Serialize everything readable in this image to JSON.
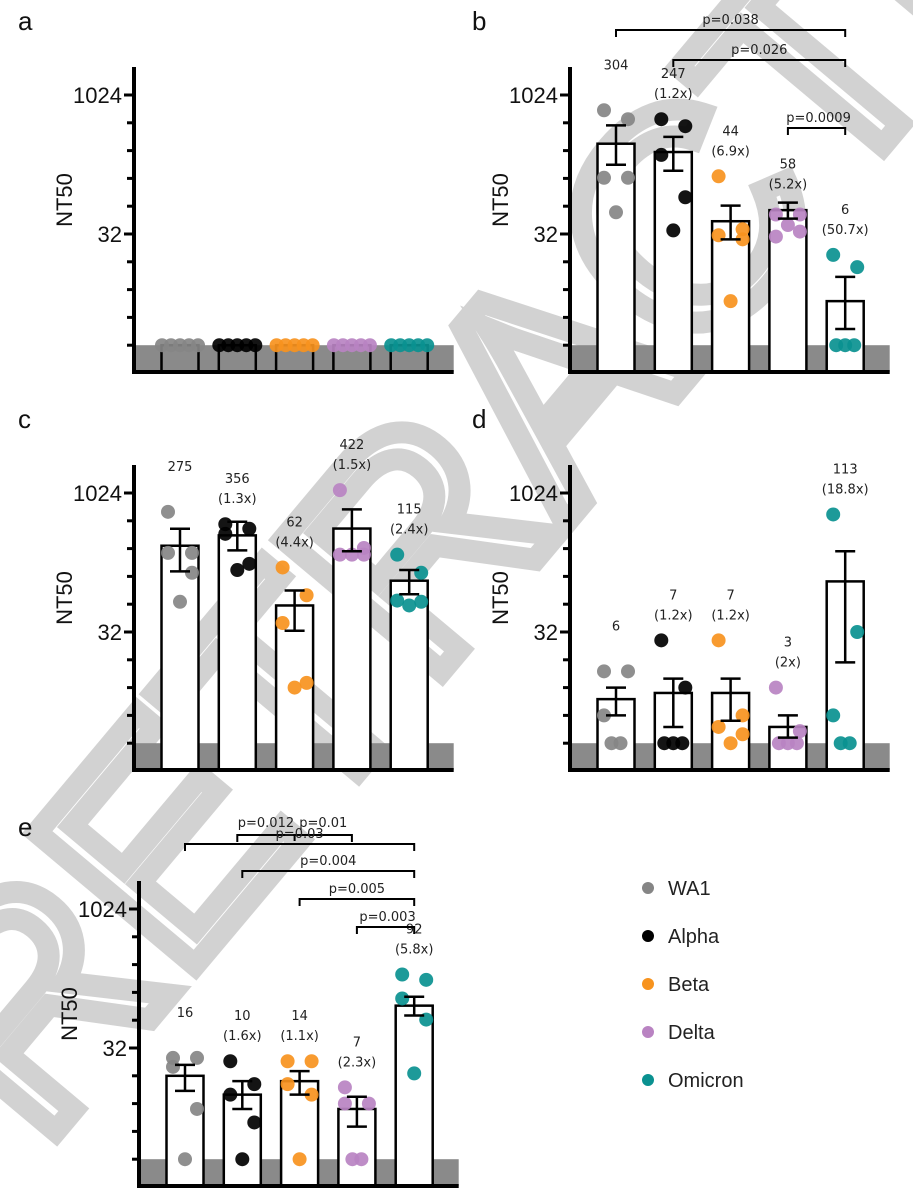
{
  "colors": {
    "WA1": "#858585",
    "Alpha": "#000000",
    "Beta": "#f7931e",
    "Delta": "#b983c2",
    "Omicron": "#0a9190",
    "lod_band": "#8a8a8a"
  },
  "legend": [
    {
      "name": "WA1",
      "color": "#858585"
    },
    {
      "name": "Alpha",
      "color": "#000000"
    },
    {
      "name": "Beta",
      "color": "#f7931e"
    },
    {
      "name": "Delta",
      "color": "#b983c2"
    },
    {
      "name": "Omicron",
      "color": "#0a9190"
    }
  ],
  "watermark": "RETRACTED ARTICLE",
  "chart_data": [
    {
      "panel": "a",
      "type": "bar",
      "ylabel": "NT50",
      "yscale": "log2",
      "yticks": [
        "1024",
        "32"
      ],
      "ylim": [
        1,
        4096
      ],
      "lod": 2,
      "categories": [
        "WA1",
        "Alpha",
        "Beta",
        "Delta",
        "Omicron"
      ],
      "means": [
        2,
        2,
        2,
        2,
        2
      ],
      "sem_low": [
        2,
        2,
        2,
        2,
        2
      ],
      "sem_high": [
        2,
        2,
        2,
        2,
        2
      ],
      "points": [
        [
          2,
          2,
          2,
          2,
          2
        ],
        [
          2,
          2,
          2,
          2,
          2
        ],
        [
          2,
          2,
          2,
          2,
          2
        ],
        [
          2,
          2,
          2,
          2,
          2
        ],
        [
          2,
          2,
          2,
          2,
          2
        ]
      ],
      "labels": [
        [
          "",
          ""
        ],
        [
          "",
          ""
        ],
        [
          "",
          ""
        ],
        [
          "",
          ""
        ],
        [
          "",
          ""
        ]
      ],
      "pvalues": []
    },
    {
      "panel": "b",
      "type": "bar",
      "ylabel": "NT50",
      "yscale": "log2",
      "yticks": [
        "1024",
        "32"
      ],
      "ylim": [
        1,
        4096
      ],
      "lod": 2,
      "categories": [
        "WA1",
        "Alpha",
        "Beta",
        "Delta",
        "Omicron"
      ],
      "means": [
        304,
        247,
        44,
        58,
        6
      ],
      "sem_low": [
        180,
        155,
        28,
        47,
        3
      ],
      "sem_high": [
        480,
        360,
        65,
        70,
        11
      ],
      "points": [
        [
          700,
          560,
          130,
          130,
          55
        ],
        [
          560,
          470,
          230,
          80,
          35
        ],
        [
          135,
          36,
          31,
          28,
          6
        ],
        [
          52,
          52,
          30,
          34,
          40
        ],
        [
          19,
          14,
          2,
          2,
          2
        ]
      ],
      "labels": [
        [
          "304",
          ""
        ],
        [
          "247",
          "(1.2x)"
        ],
        [
          "44",
          "(6.9x)"
        ],
        [
          "58",
          "(5.2x)"
        ],
        [
          "6",
          "(50.7x)"
        ]
      ],
      "pvalues": [
        {
          "from": 0,
          "to": 4,
          "label": "p=0.038"
        },
        {
          "from": 1,
          "to": 4,
          "label": "p=0.026"
        },
        {
          "from": 3,
          "to": 4,
          "label": "p=0.0009"
        }
      ]
    },
    {
      "panel": "c",
      "type": "bar",
      "ylabel": "NT50",
      "yscale": "log2",
      "yticks": [
        "1024",
        "32"
      ],
      "ylim": [
        1,
        4096
      ],
      "lod": 2,
      "categories": [
        "WA1",
        "Alpha",
        "Beta",
        "Delta",
        "Omicron"
      ],
      "means": [
        275,
        356,
        62,
        422,
        115
      ],
      "sem_low": [
        145,
        245,
        33,
        240,
        82
      ],
      "sem_high": [
        420,
        500,
        90,
        680,
        150
      ],
      "points": [
        [
          640,
          230,
          230,
          140,
          68
        ],
        [
          470,
          420,
          370,
          175,
          150
        ],
        [
          160,
          80,
          40,
          9,
          8
        ],
        [
          1100,
          260,
          220,
          220,
          220
        ],
        [
          220,
          140,
          70,
          68,
          62
        ]
      ],
      "labels": [
        [
          "275",
          ""
        ],
        [
          "356",
          "(1.3x)"
        ],
        [
          "62",
          "(4.4x)"
        ],
        [
          "422",
          "(1.5x)"
        ],
        [
          "115",
          "(2.4x)"
        ]
      ],
      "pvalues": [
        {
          "from": 1,
          "to": 2,
          "label": "p=0.012"
        },
        {
          "from": 3,
          "to": 2,
          "label": "p=0.01"
        }
      ]
    },
    {
      "panel": "d",
      "type": "bar",
      "ylabel": "NT50",
      "yscale": "log2",
      "yticks": [
        "1024",
        "32"
      ],
      "ylim": [
        1,
        4096
      ],
      "lod": 2,
      "categories": [
        "WA1",
        "Alpha",
        "Beta",
        "Delta",
        "Omicron"
      ],
      "means": [
        6,
        7,
        7,
        3,
        113
      ],
      "sem_low": [
        4,
        3,
        3.5,
        2.3,
        15
      ],
      "sem_high": [
        8,
        10,
        10,
        4,
        240
      ],
      "points": [
        [
          12,
          12,
          4,
          2,
          2
        ],
        [
          26,
          8,
          2,
          2,
          2
        ],
        [
          26,
          4,
          3,
          2.5,
          2
        ],
        [
          8,
          2.7,
          2,
          2,
          2
        ],
        [
          600,
          32,
          4,
          2,
          2
        ]
      ],
      "labels": [
        [
          "6",
          ""
        ],
        [
          "7",
          "(1.2x)"
        ],
        [
          "7",
          "(1.2x)"
        ],
        [
          "3",
          "(2x)"
        ],
        [
          "113",
          "(18.8x)"
        ]
      ],
      "pvalues": []
    },
    {
      "panel": "e",
      "type": "bar",
      "ylabel": "NT50",
      "yscale": "log2",
      "yticks": [
        "1024",
        "32"
      ],
      "ylim": [
        1,
        4096
      ],
      "lod": 2,
      "categories": [
        "WA1",
        "Alpha",
        "Beta",
        "Delta",
        "Omicron"
      ],
      "means": [
        16,
        10,
        14,
        7,
        92
      ],
      "sem_low": [
        11,
        7,
        10,
        4.5,
        72
      ],
      "sem_high": [
        21,
        14,
        18,
        9.5,
        115
      ],
      "points": [
        [
          25,
          25,
          20,
          7,
          2
        ],
        [
          23,
          13,
          10,
          5,
          2
        ],
        [
          23,
          23,
          13,
          10,
          2
        ],
        [
          12,
          8,
          8,
          2,
          2
        ],
        [
          200,
          175,
          110,
          65,
          17
        ]
      ],
      "labels": [
        [
          "16",
          ""
        ],
        [
          "10",
          "(1.6x)"
        ],
        [
          "14",
          "(1.1x)"
        ],
        [
          "7",
          "(2.3x)"
        ],
        [
          "92",
          "(5.8x)"
        ]
      ],
      "pvalues": [
        {
          "from": 0,
          "to": 4,
          "label": "p=0.03"
        },
        {
          "from": 1,
          "to": 4,
          "label": "p=0.004"
        },
        {
          "from": 2,
          "to": 4,
          "label": "p=0.005"
        },
        {
          "from": 3,
          "to": 4,
          "label": "p=0.003"
        }
      ]
    }
  ]
}
